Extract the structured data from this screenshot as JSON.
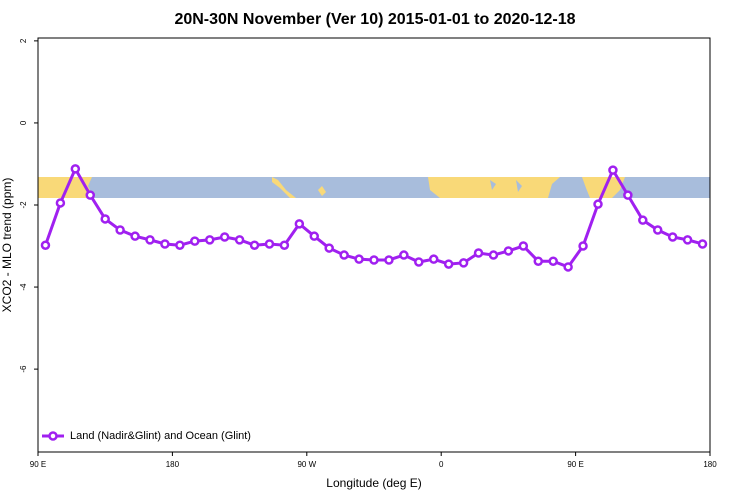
{
  "chart_data": {
    "type": "line",
    "title": "20N-30N November (Ver 10)   2015-01-01 to 2020-12-18",
    "x_label": "Longitude (deg E)",
    "y_label": "XCO2 - MLO trend (ppm)",
    "x": [
      95,
      105,
      115,
      125,
      135,
      145,
      155,
      165,
      175,
      185,
      195,
      205,
      215,
      225,
      235,
      245,
      255,
      265,
      275,
      285,
      295,
      305,
      315,
      325,
      335,
      345,
      355,
      365,
      375,
      385,
      395,
      405,
      415,
      425,
      435,
      445,
      455,
      465,
      475,
      485,
      495,
      505,
      515,
      525,
      535
    ],
    "series": [
      {
        "name": "Land (Nadir&Glint) and Ocean (Glint)",
        "color": "#a020f0",
        "values": [
          -2.98,
          -1.95,
          -1.12,
          -1.76,
          -2.34,
          -2.61,
          -2.76,
          -2.85,
          -2.95,
          -2.98,
          -2.88,
          -2.85,
          -2.78,
          -2.85,
          -2.98,
          -2.95,
          -2.98,
          -2.46,
          -2.76,
          -3.05,
          -3.22,
          -3.32,
          -3.34,
          -3.34,
          -3.22,
          -3.39,
          -3.32,
          -3.44,
          -3.41,
          -3.17,
          -3.22,
          -3.12,
          -3.0,
          -3.37,
          -3.37,
          -3.51,
          -3.0,
          -1.98,
          -1.15,
          -1.76,
          -2.37,
          -2.61,
          -2.78,
          -2.85,
          -2.95
        ]
      }
    ],
    "xlim": [
      90,
      540
    ],
    "ylim": [
      -8.02,
      2.07
    ],
    "xticks": [
      {
        "value": 90,
        "label": "90 E"
      },
      180,
      {
        "value": 270,
        "label": "90 W"
      },
      {
        "value": 360,
        "label": "0"
      },
      {
        "value": 450,
        "label": "90 E"
      },
      {
        "value": 540,
        "label": "180"
      }
    ],
    "yticks": [
      2,
      0,
      -2,
      -4,
      -6
    ],
    "legend": "bottomleft"
  }
}
